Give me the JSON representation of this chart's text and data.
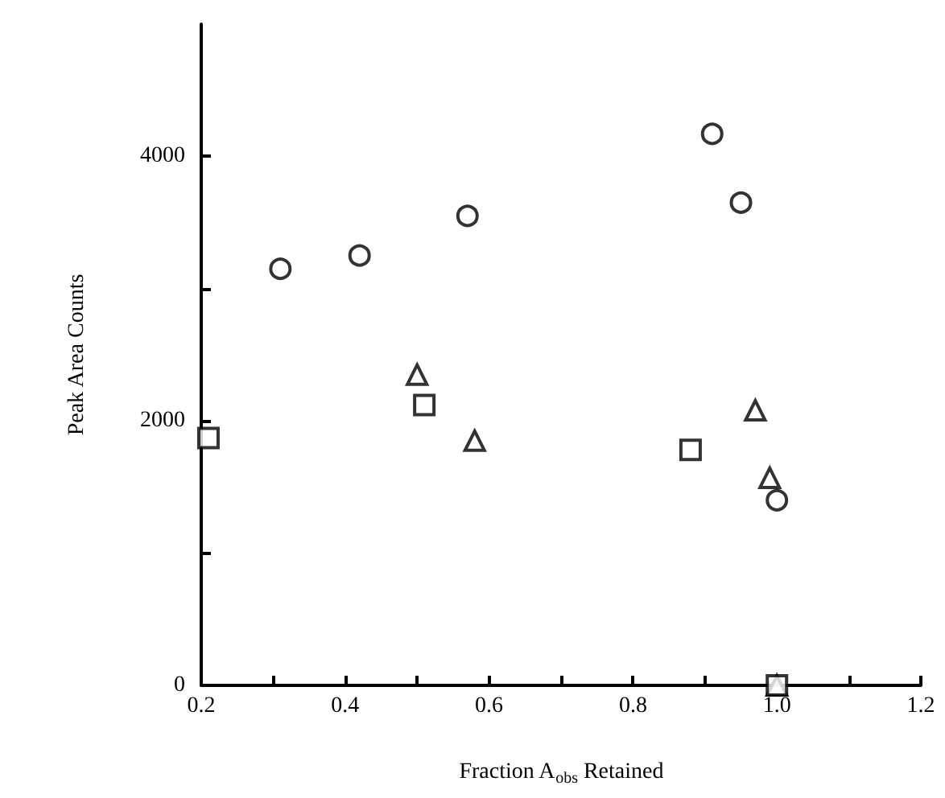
{
  "chart_data": {
    "type": "scatter",
    "xlabel": "Fraction A$_{obs}$ Retained",
    "ylabel": "Peak Area Counts",
    "xlim": [
      0.2,
      1.2
    ],
    "xticks": [
      0.2,
      {
        "value": 0.3,
        "label": null
      },
      0.4,
      {
        "value": 0.5,
        "label": null
      },
      0.6,
      {
        "value": 0.7,
        "label": null
      },
      0.8,
      {
        "value": 0.9,
        "label": null
      },
      {
        "value": 1.0,
        "label": "1.0"
      },
      {
        "value": 1.1,
        "label": null
      },
      1.2
    ],
    "ylim": [
      0,
      5000
    ],
    "yticks": [
      0,
      {
        "value": 1000,
        "label": null
      },
      2000,
      {
        "value": 3000,
        "label": null
      },
      4000
    ],
    "grid": false,
    "series": [
      {
        "color": "#000000",
        "marker": "circle",
        "x": [
          0.31,
          0.42,
          0.57,
          0.91,
          0.95,
          1.0
        ],
        "values": [
          3150,
          3250,
          3550,
          4170,
          3650,
          1400
        ]
      },
      {
        "color": "#000000",
        "marker": "triangle",
        "x": [
          0.5,
          0.58,
          0.97,
          0.99,
          1.0
        ],
        "values": [
          2350,
          1850,
          2080,
          1570,
          0
        ]
      },
      {
        "color": "#000000",
        "marker": "square",
        "x": [
          0.21,
          0.51,
          0.88,
          1.0
        ],
        "values": [
          1870,
          2120,
          1780,
          0
        ]
      }
    ]
  }
}
